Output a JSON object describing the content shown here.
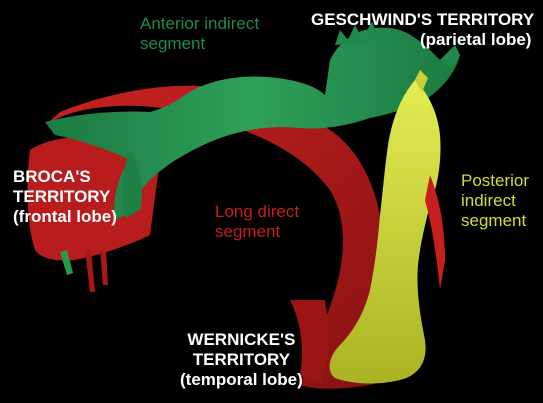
{
  "diagram": {
    "colors": {
      "background": "#000000",
      "anterior_indirect": "#1f8a4c",
      "long_direct": "#c81e1e",
      "posterior_indirect": "#d2dc35",
      "territory_text": "#ffffff"
    },
    "territories": {
      "geschwind": {
        "line1": "GESCHWIND'S TERRITORY",
        "line2": "(parietal lobe)"
      },
      "broca": {
        "line1": "BROCA'S",
        "line2": "TERRITORY",
        "line3": "(frontal lobe)"
      },
      "wernicke": {
        "line1": "WERNICKE'S",
        "line2": "TERRITORY",
        "line3": "(temporal lobe)"
      }
    },
    "segments": {
      "anterior_indirect": {
        "line1": "Anterior indirect",
        "line2": "segment"
      },
      "long_direct": {
        "line1": "Long direct",
        "line2": "segment"
      },
      "posterior_indirect": {
        "line1": "Posterior",
        "line2": "indirect",
        "line3": "segment"
      }
    }
  }
}
